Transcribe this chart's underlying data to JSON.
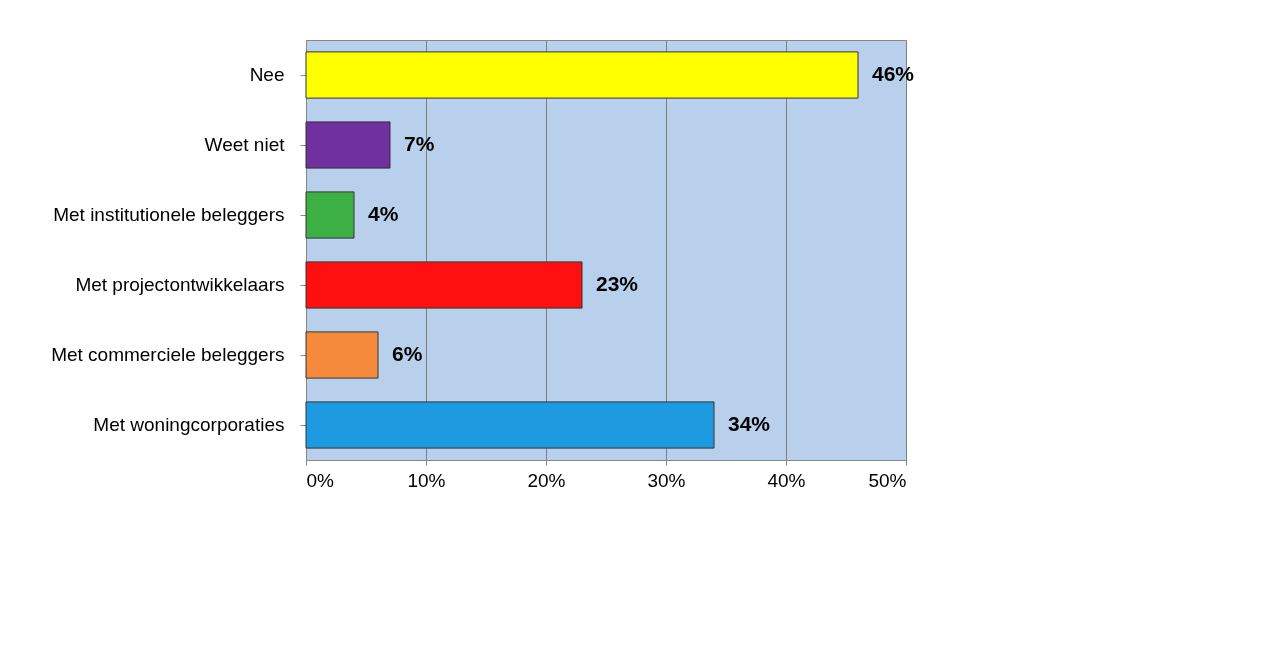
{
  "chart_data": {
    "type": "bar",
    "orientation": "horizontal",
    "categories": [
      "Nee",
      "Weet niet",
      "Met institutionele beleggers",
      "Met projectontwikkelaars",
      "Met commerciele beleggers",
      "Met woningcorporaties"
    ],
    "values": [
      46,
      7,
      4,
      23,
      6,
      34
    ],
    "colors": [
      "#ffff00",
      "#7030a0",
      "#3cb043",
      "#ff1010",
      "#f58a3c",
      "#1e9be0"
    ],
    "value_labels": [
      "46%",
      "7%",
      "4%",
      "23%",
      "6%",
      "34%"
    ],
    "xlim": [
      0,
      50
    ],
    "xticks": [
      {
        "value": 0,
        "label": "0%"
      },
      {
        "value": 10,
        "label": "10%"
      },
      {
        "value": 20,
        "label": "20%"
      },
      {
        "value": 30,
        "label": "30%"
      },
      {
        "value": 40,
        "label": "40%"
      },
      {
        "value": 50,
        "label": "50%"
      }
    ],
    "grid": "x"
  }
}
